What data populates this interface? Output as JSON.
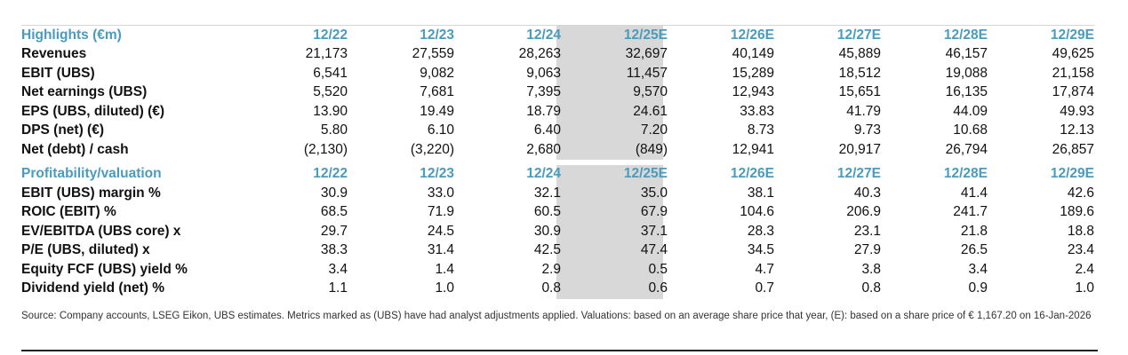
{
  "years": [
    "12/22",
    "12/23",
    "12/24",
    "12/25E",
    "12/26E",
    "12/27E",
    "12/28E",
    "12/29E"
  ],
  "highlights": {
    "title": "Highlights (€m)",
    "rows": [
      {
        "label": "Revenues",
        "values": [
          "21,173",
          "27,559",
          "28,263",
          "32,697",
          "40,149",
          "45,889",
          "46,157",
          "49,625"
        ]
      },
      {
        "label": "EBIT (UBS)",
        "values": [
          "6,541",
          "9,082",
          "9,063",
          "11,457",
          "15,289",
          "18,512",
          "19,088",
          "21,158"
        ]
      },
      {
        "label": "Net earnings (UBS)",
        "values": [
          "5,520",
          "7,681",
          "7,395",
          "9,570",
          "12,943",
          "15,651",
          "16,135",
          "17,874"
        ]
      },
      {
        "label": "EPS (UBS, diluted) (€)",
        "values": [
          "13.90",
          "19.49",
          "18.79",
          "24.61",
          "33.83",
          "41.79",
          "44.09",
          "49.93"
        ]
      },
      {
        "label": "DPS (net) (€)",
        "values": [
          "5.80",
          "6.10",
          "6.40",
          "7.20",
          "8.73",
          "9.73",
          "10.68",
          "12.13"
        ]
      },
      {
        "label": "Net (debt) / cash",
        "values": [
          "(2,130)",
          "(3,220)",
          "2,680",
          "(849)",
          "12,941",
          "20,917",
          "26,794",
          "26,857"
        ]
      }
    ]
  },
  "profitability": {
    "title": "Profitability/valuation",
    "rows": [
      {
        "label": "EBIT (UBS) margin %",
        "values": [
          "30.9",
          "33.0",
          "32.1",
          "35.0",
          "38.1",
          "40.3",
          "41.4",
          "42.6"
        ]
      },
      {
        "label": "ROIC (EBIT) %",
        "values": [
          "68.5",
          "71.9",
          "60.5",
          "67.9",
          "104.6",
          "206.9",
          "241.7",
          "189.6"
        ]
      },
      {
        "label": "EV/EBITDA (UBS core) x",
        "values": [
          "29.7",
          "24.5",
          "30.9",
          "37.1",
          "28.3",
          "23.1",
          "21.8",
          "18.8"
        ]
      },
      {
        "label": "P/E (UBS, diluted) x",
        "values": [
          "38.3",
          "31.4",
          "42.5",
          "47.4",
          "34.5",
          "27.9",
          "26.5",
          "23.4"
        ]
      },
      {
        "label": "Equity FCF (UBS) yield %",
        "values": [
          "3.4",
          "1.4",
          "2.9",
          "0.5",
          "4.7",
          "3.8",
          "3.4",
          "2.4"
        ]
      },
      {
        "label": "Dividend yield (net) %",
        "values": [
          "1.1",
          "1.0",
          "0.8",
          "0.6",
          "0.7",
          "0.8",
          "0.9",
          "1.0"
        ]
      }
    ]
  },
  "source_text": "Source: Company accounts, LSEG Eikon, UBS estimates. Metrics marked as (UBS) have had analyst adjustments applied. Valuations: based on an average share price that year, (E): based on a share price of € 1,167.20 on 16-Jan-2026",
  "colors": {
    "header_blue": "#4a9bbd",
    "estimate_shade": "#d8d8d8"
  }
}
